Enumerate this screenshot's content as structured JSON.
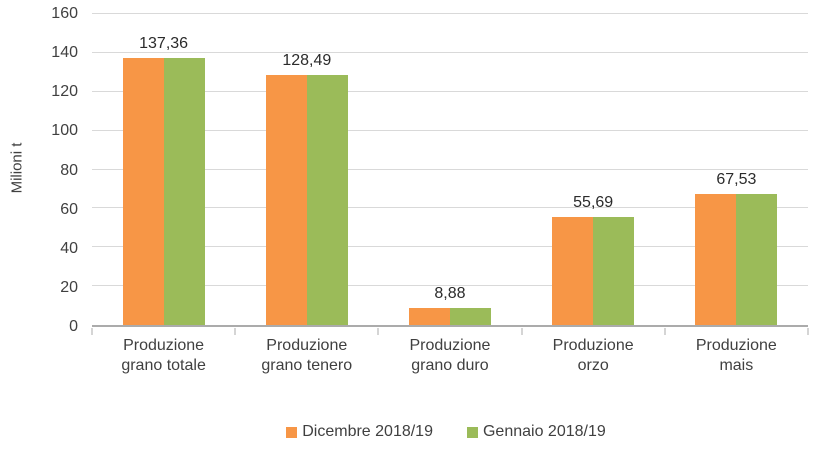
{
  "chart": {
    "y_axis_title": "Milioni t"
  },
  "colors": {
    "series_dicembre": "#F79646",
    "series_gennaio": "#9BBB59",
    "gridline": "#D9D9D9",
    "axis_line": "#ABABAB",
    "text": "#404040"
  },
  "chart_data": {
    "type": "bar",
    "title": "",
    "xlabel": "",
    "ylabel": "Milioni t",
    "ylim": [
      0,
      160
    ],
    "yticks": [
      0,
      20,
      40,
      60,
      80,
      100,
      120,
      140,
      160
    ],
    "grid": true,
    "legend_position": "bottom",
    "categories": [
      "Produzione grano totale",
      "Produzione grano tenero",
      "Produzione grano duro",
      "Produzione orzo",
      "Produzione mais"
    ],
    "category_lines": [
      [
        "Produzione",
        "grano totale"
      ],
      [
        "Produzione",
        "grano tenero"
      ],
      [
        "Produzione",
        "grano duro"
      ],
      [
        "Produzione",
        "orzo"
      ],
      [
        "Produzione",
        "mais"
      ]
    ],
    "series": [
      {
        "name": "Dicembre 2018/19",
        "color": "#F79646",
        "values": [
          137.36,
          128.49,
          8.88,
          55.69,
          67.53
        ]
      },
      {
        "name": "Gennaio 2018/19",
        "color": "#9BBB59",
        "values": [
          137.36,
          128.49,
          8.88,
          55.69,
          67.53
        ]
      }
    ],
    "data_labels": [
      "137,36",
      "128,49",
      "8,88",
      "55,69",
      "67,53"
    ]
  }
}
